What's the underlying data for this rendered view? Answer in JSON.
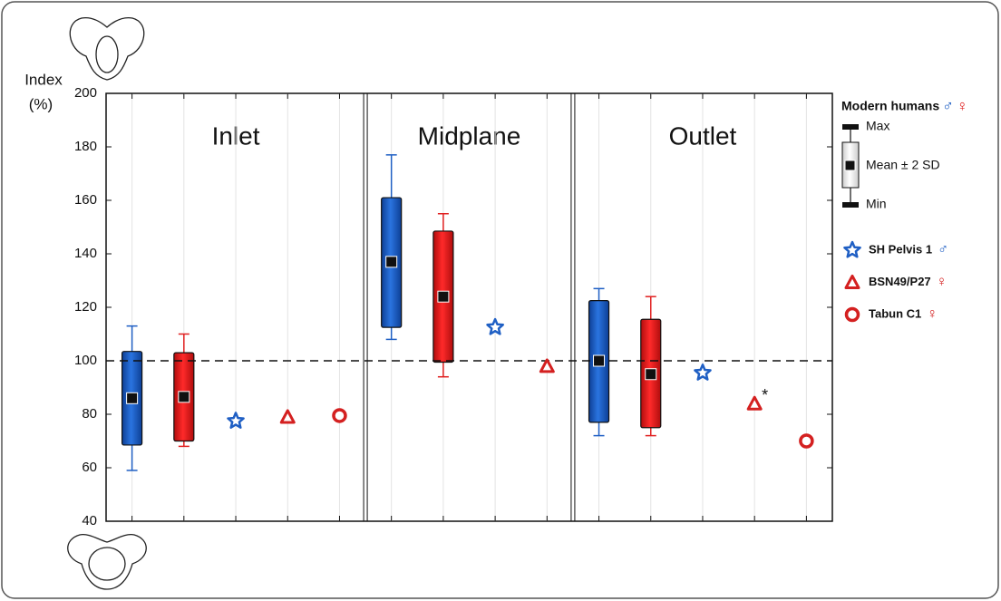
{
  "chart_data": {
    "type": "box",
    "y_label": "Index",
    "y_unit": "(%)",
    "ylim": [
      40,
      200
    ],
    "yticks": [
      40,
      60,
      80,
      100,
      120,
      140,
      160,
      180,
      200
    ],
    "reference_line": 100,
    "panels": [
      "Inlet",
      "Midplane",
      "Outlet"
    ],
    "modern_humans": {
      "name": "Modern humans",
      "male_symbol": "♂",
      "female_symbol": "♀",
      "box_legend": {
        "max": "Max",
        "mid": "Mean ± 2 SD",
        "min": "Min"
      },
      "series": [
        {
          "color": "#1f5fc4",
          "min": [
            59,
            108,
            72
          ],
          "low": [
            68.5,
            112.5,
            77
          ],
          "mean": [
            86,
            137,
            100
          ],
          "high": [
            103.5,
            161,
            122.5
          ],
          "max": [
            113,
            177,
            127
          ]
        },
        {
          "color": "#e02020",
          "min": [
            68,
            94,
            72
          ],
          "low": [
            70,
            99.5,
            75
          ],
          "mean": [
            86.5,
            124,
            95
          ],
          "high": [
            103,
            148.5,
            115.5
          ],
          "max": [
            110,
            155,
            124
          ]
        }
      ]
    },
    "specimens": [
      {
        "name": "SH Pelvis 1",
        "sex_symbol": "♂",
        "marker": "star",
        "color": "#1f5fc4",
        "values": [
          77.5,
          112.5,
          95.5
        ]
      },
      {
        "name": "BSN49/P27",
        "sex_symbol": "♀",
        "marker": "triangle",
        "color": "#d42020",
        "values": [
          79,
          98,
          84
        ],
        "annotations": [
          null,
          null,
          "*"
        ]
      },
      {
        "name": "Tabun C1",
        "sex_symbol": "♀",
        "marker": "circle",
        "color": "#d42020",
        "values": [
          79.5,
          null,
          70
        ]
      }
    ]
  }
}
